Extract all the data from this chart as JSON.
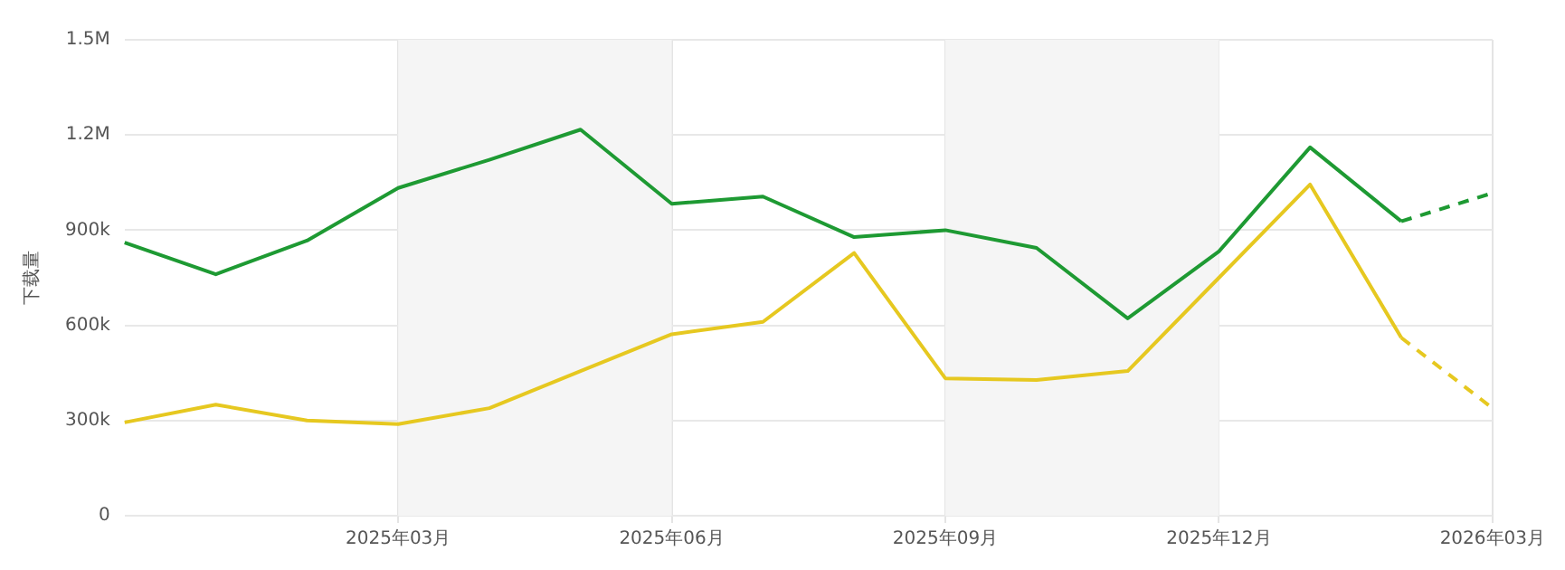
{
  "chart_data": {
    "type": "line",
    "ylabel": "下载量",
    "categories": [
      null,
      null,
      null,
      "2025年03月",
      null,
      null,
      "2025年06月",
      null,
      null,
      "2025年09月",
      null,
      null,
      "2025年12月",
      null,
      null,
      "2026年03月"
    ],
    "series": [
      {
        "color": "#1e9a33",
        "line_style": "solid",
        "values": [
          861000,
          761000,
          867000,
          1033000,
          1122000,
          1217000,
          983000,
          1006000,
          878000,
          900000,
          844000,
          622000,
          833000,
          1161000,
          928000,
          null
        ]
      },
      {
        "color": "#1e9a33",
        "line_style": "dashed",
        "values": [
          null,
          null,
          null,
          null,
          null,
          null,
          null,
          null,
          null,
          null,
          null,
          null,
          null,
          null,
          928000,
          1017000
        ]
      },
      {
        "color": "#e6c820",
        "line_style": "solid",
        "values": [
          294000,
          350000,
          300000,
          289000,
          339000,
          456000,
          572000,
          611000,
          828000,
          433000,
          428000,
          456000,
          750000,
          1044000,
          561000,
          null
        ]
      },
      {
        "color": "#e6c820",
        "line_style": "dashed",
        "values": [
          null,
          null,
          null,
          null,
          null,
          null,
          null,
          null,
          null,
          null,
          null,
          null,
          null,
          null,
          561000,
          339000
        ]
      }
    ],
    "ylim": [
      0,
      1500000
    ],
    "yticks": [
      0,
      {
        "value": 300000,
        "label": "300k"
      },
      {
        "value": 600000,
        "label": "600k"
      },
      {
        "value": 900000,
        "label": "900k"
      },
      {
        "value": 1200000,
        "label": "1.2M"
      },
      {
        "value": 1500000,
        "label": "1.5M"
      }
    ],
    "bands": [
      {
        "axis": "x",
        "from": "2025年03月",
        "to": "2025年06月",
        "color": "#f5f5f5"
      },
      {
        "axis": "x",
        "from": "2025年09月",
        "to": "2025年12月",
        "color": "#f5f5f5"
      }
    ],
    "grid": true,
    "legend": false,
    "marker": "none"
  }
}
